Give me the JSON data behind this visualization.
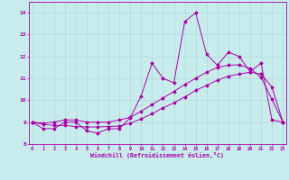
{
  "xlabel": "Windchill (Refroidissement éolien,°C)",
  "ylabel": "",
  "bg_color": "#c8ecec",
  "line_color": "#aa00aa",
  "grid_color": "#b0d8d8",
  "x": [
    0,
    1,
    2,
    3,
    4,
    5,
    6,
    7,
    8,
    9,
    10,
    11,
    12,
    13,
    14,
    15,
    16,
    17,
    18,
    19,
    20,
    21,
    22,
    23
  ],
  "y_main": [
    9.0,
    8.7,
    8.7,
    9.0,
    9.0,
    8.6,
    8.5,
    8.7,
    8.7,
    9.2,
    10.2,
    11.7,
    11.0,
    10.8,
    13.6,
    14.0,
    12.1,
    11.6,
    12.2,
    12.0,
    11.3,
    11.7,
    9.1,
    9.0
  ],
  "y_trend1": [
    9.0,
    8.9,
    8.85,
    8.85,
    8.8,
    8.78,
    8.78,
    8.8,
    8.82,
    8.95,
    9.15,
    9.38,
    9.65,
    9.88,
    10.15,
    10.45,
    10.68,
    10.92,
    11.1,
    11.2,
    11.28,
    11.2,
    10.6,
    9.0
  ],
  "y_trend2": [
    9.0,
    8.95,
    9.0,
    9.1,
    9.1,
    9.0,
    9.0,
    9.0,
    9.1,
    9.22,
    9.5,
    9.8,
    10.1,
    10.4,
    10.72,
    11.0,
    11.28,
    11.5,
    11.6,
    11.62,
    11.45,
    11.05,
    10.05,
    9.0
  ],
  "xlim": [
    -0.3,
    23.3
  ],
  "ylim": [
    8.0,
    14.5
  ],
  "yticks": [
    8,
    9,
    10,
    11,
    12,
    13,
    14
  ],
  "xticks": [
    0,
    1,
    2,
    3,
    4,
    5,
    6,
    7,
    8,
    9,
    10,
    11,
    12,
    13,
    14,
    15,
    16,
    17,
    18,
    19,
    20,
    21,
    22,
    23
  ]
}
